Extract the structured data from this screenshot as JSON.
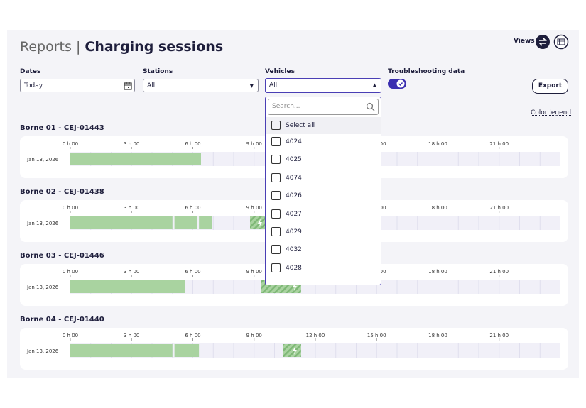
{
  "header": {
    "title_prefix": "Reports",
    "separator": "|",
    "title": "Charging sessions",
    "views_label": "Views"
  },
  "filters": {
    "dates": {
      "label": "Dates",
      "value": "Today"
    },
    "stations": {
      "label": "Stations",
      "value": "All"
    },
    "vehicles": {
      "label": "Vehicles",
      "value": "All"
    },
    "troubleshooting": {
      "label": "Troubleshooting data",
      "enabled": true
    }
  },
  "export_button": "Export",
  "color_legend": "Color legend",
  "dropdown": {
    "search_placeholder": "Search...",
    "options": [
      "Select all",
      "4024",
      "4025",
      "4074",
      "4026",
      "4027",
      "4029",
      "4032",
      "4028"
    ]
  },
  "timeline": {
    "hour_range": [
      0,
      24
    ],
    "ticks": [
      {
        "value": 0,
        "label": "0 h 00"
      },
      {
        "value": 3,
        "label": "3 h 00"
      },
      {
        "value": 6,
        "label": "6 h 00"
      },
      {
        "value": 9,
        "label": "9 h 00"
      },
      {
        "value": 12,
        "label": "12 h 00"
      },
      {
        "value": 15,
        "label": "15 h 00"
      },
      {
        "value": 18,
        "label": "18 h 00"
      },
      {
        "value": 21,
        "label": "21 h 00"
      }
    ]
  },
  "bornes": [
    {
      "name": "Borne 01 - CEJ-01443",
      "date": "Jan 13, 2026",
      "sessions": [
        {
          "start": 0,
          "end": 6.4
        }
      ],
      "troubleshooting": []
    },
    {
      "name": "Borne 02 - CEJ-01438",
      "date": "Jan 13, 2026",
      "sessions": [
        {
          "start": 0,
          "end": 5
        },
        {
          "start": 5.1,
          "end": 6.2
        },
        {
          "start": 6.3,
          "end": 6.95
        }
      ],
      "troubleshooting": [
        {
          "start": 8.8,
          "end": 9.6
        }
      ]
    },
    {
      "name": "Borne 03 - CEJ-01446",
      "date": "Jan 13, 2026",
      "sessions": [
        {
          "start": 0,
          "end": 5.6
        }
      ],
      "troubleshooting": [
        {
          "start": 9.35,
          "end": 11.3
        }
      ]
    },
    {
      "name": "Borne 04 - CEJ-01440",
      "date": "Jan 13, 2026",
      "sessions": [
        {
          "start": 0,
          "end": 5
        },
        {
          "start": 5.1,
          "end": 6.3
        }
      ],
      "troubleshooting": [
        {
          "start": 10.4,
          "end": 11.3
        }
      ]
    }
  ]
}
